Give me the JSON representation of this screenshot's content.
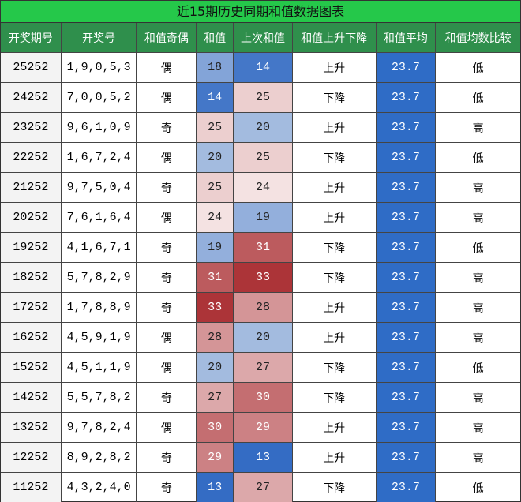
{
  "title": "近15期历史同期和值数据图表",
  "table": {
    "header": [
      "开奖期号",
      "开奖号",
      "和值奇偶",
      "和值",
      "上次和值",
      "和值上升下降",
      "和值平均",
      "和值均数比较"
    ],
    "rows": [
      [
        "25252",
        "1,9,0,5,3",
        "偶",
        18,
        14,
        "上升",
        23.7,
        "低"
      ],
      [
        "24252",
        "7,0,0,5,2",
        "偶",
        14,
        25,
        "下降",
        23.7,
        "低"
      ],
      [
        "23252",
        "9,6,1,0,9",
        "奇",
        25,
        20,
        "上升",
        23.7,
        "高"
      ],
      [
        "22252",
        "1,6,7,2,4",
        "偶",
        20,
        25,
        "下降",
        23.7,
        "低"
      ],
      [
        "21252",
        "9,7,5,0,4",
        "奇",
        25,
        24,
        "上升",
        23.7,
        "高"
      ],
      [
        "20252",
        "7,6,1,6,4",
        "偶",
        24,
        19,
        "上升",
        23.7,
        "高"
      ],
      [
        "19252",
        "4,1,6,7,1",
        "奇",
        19,
        31,
        "下降",
        23.7,
        "低"
      ],
      [
        "18252",
        "5,7,8,2,9",
        "奇",
        31,
        33,
        "下降",
        23.7,
        "高"
      ],
      [
        "17252",
        "1,7,8,8,9",
        "奇",
        33,
        28,
        "上升",
        23.7,
        "高"
      ],
      [
        "16252",
        "4,5,9,1,9",
        "偶",
        28,
        20,
        "上升",
        23.7,
        "高"
      ],
      [
        "15252",
        "4,5,1,1,9",
        "偶",
        20,
        27,
        "下降",
        23.7,
        "低"
      ],
      [
        "14252",
        "5,5,7,8,2",
        "奇",
        27,
        30,
        "下降",
        23.7,
        "高"
      ],
      [
        "13252",
        "9,7,8,2,4",
        "偶",
        30,
        29,
        "上升",
        23.7,
        "高"
      ],
      [
        "12252",
        "8,9,2,8,2",
        "奇",
        29,
        13,
        "上升",
        23.7,
        "高"
      ],
      [
        "11252",
        "4,3,2,4,0",
        "奇",
        13,
        27,
        "下降",
        23.7,
        "低"
      ]
    ]
  }
}
